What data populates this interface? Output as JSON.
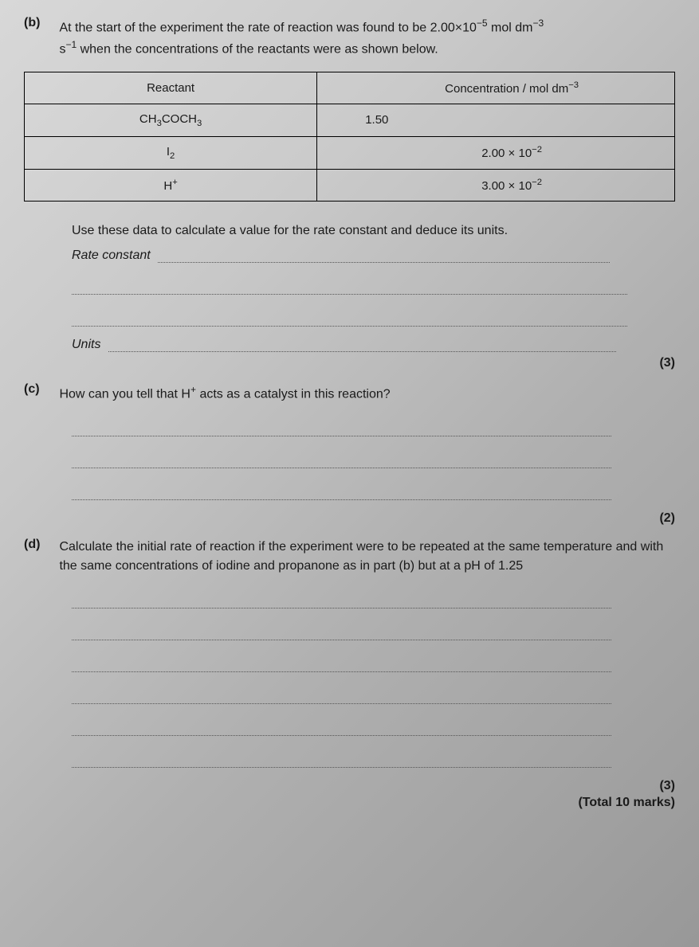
{
  "partB": {
    "label": "(b)",
    "text1": "At the start of the experiment the rate of reaction was found to be 2.00×10",
    "textSup1": "−5",
    "text2": " mol dm",
    "textSup2": "−3",
    "text3": "s",
    "textSup3": "−1",
    "text4": " when the concentrations of the reactants were as shown below.",
    "table": {
      "header1": "Reactant",
      "header2": "Concentration / mol dm",
      "header2sup": "−3",
      "rows": [
        {
          "reactant": "CH",
          "sub1": "3",
          "mid": "COCH",
          "sub2": "3",
          "conc": "1.50"
        },
        {
          "reactant": "I",
          "sub1": "2",
          "mid": "",
          "sub2": "",
          "conc": "2.00 × 10",
          "concSup": "−2"
        },
        {
          "reactant": "H",
          "sup": "+",
          "conc": "3.00 × 10",
          "concSup": "−2"
        }
      ]
    },
    "instruction": "Use these data to calculate a value for the rate constant and deduce its units.",
    "rateLabel": "Rate constant",
    "unitsLabel": "Units",
    "marks": "(3)"
  },
  "partC": {
    "label": "(c)",
    "text1": "How can you tell that H",
    "textSup": "+",
    "text2": " acts as a catalyst in this reaction?",
    "marks": "(2)"
  },
  "partD": {
    "label": "(d)",
    "text": "Calculate the initial rate of reaction if the experiment were to be repeated at the same temperature and with the same concentrations of iodine and propanone as in part (b) but at a pH of 1.25",
    "marks": "(3)",
    "total": "(Total 10 marks)"
  }
}
